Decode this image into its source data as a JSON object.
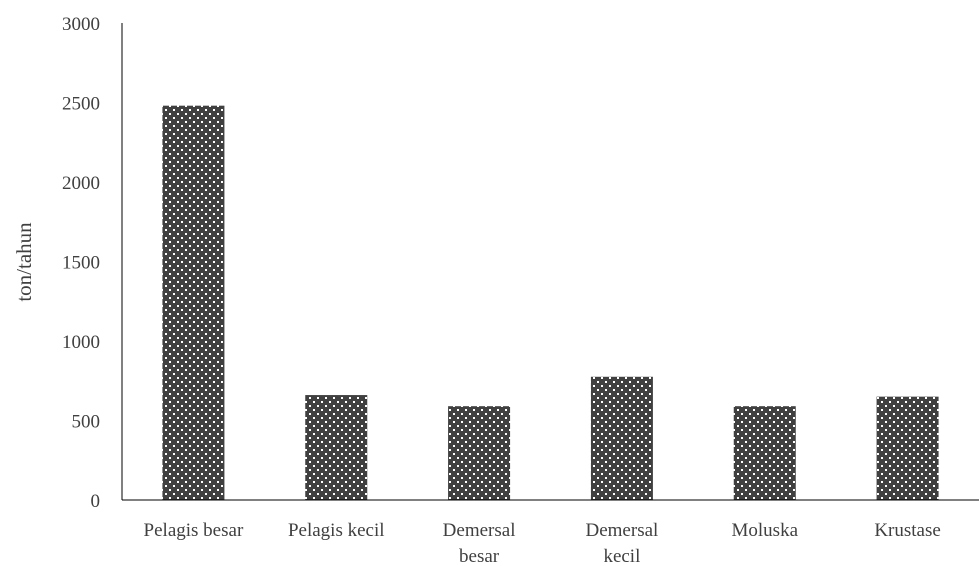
{
  "chart_data": {
    "type": "bar",
    "title": "",
    "xlabel": "",
    "ylabel": "ton/tahun",
    "ylim": [
      0,
      3000
    ],
    "yticks": [
      0,
      500,
      1000,
      1500,
      2000,
      2500,
      3000
    ],
    "categories": [
      [
        "Pelagis besar"
      ],
      [
        "Pelagis kecil"
      ],
      [
        "Demersal",
        "besar"
      ],
      [
        "Demersal",
        "kecil"
      ],
      [
        "Moluska"
      ],
      [
        "Krustase"
      ]
    ],
    "values": [
      2480,
      660,
      590,
      775,
      590,
      650
    ],
    "grid": false,
    "legend": "none",
    "colors": {
      "bar": "#404040",
      "pattern_dot": "#ffffff",
      "axis": "#000000",
      "text": "#404040"
    }
  }
}
